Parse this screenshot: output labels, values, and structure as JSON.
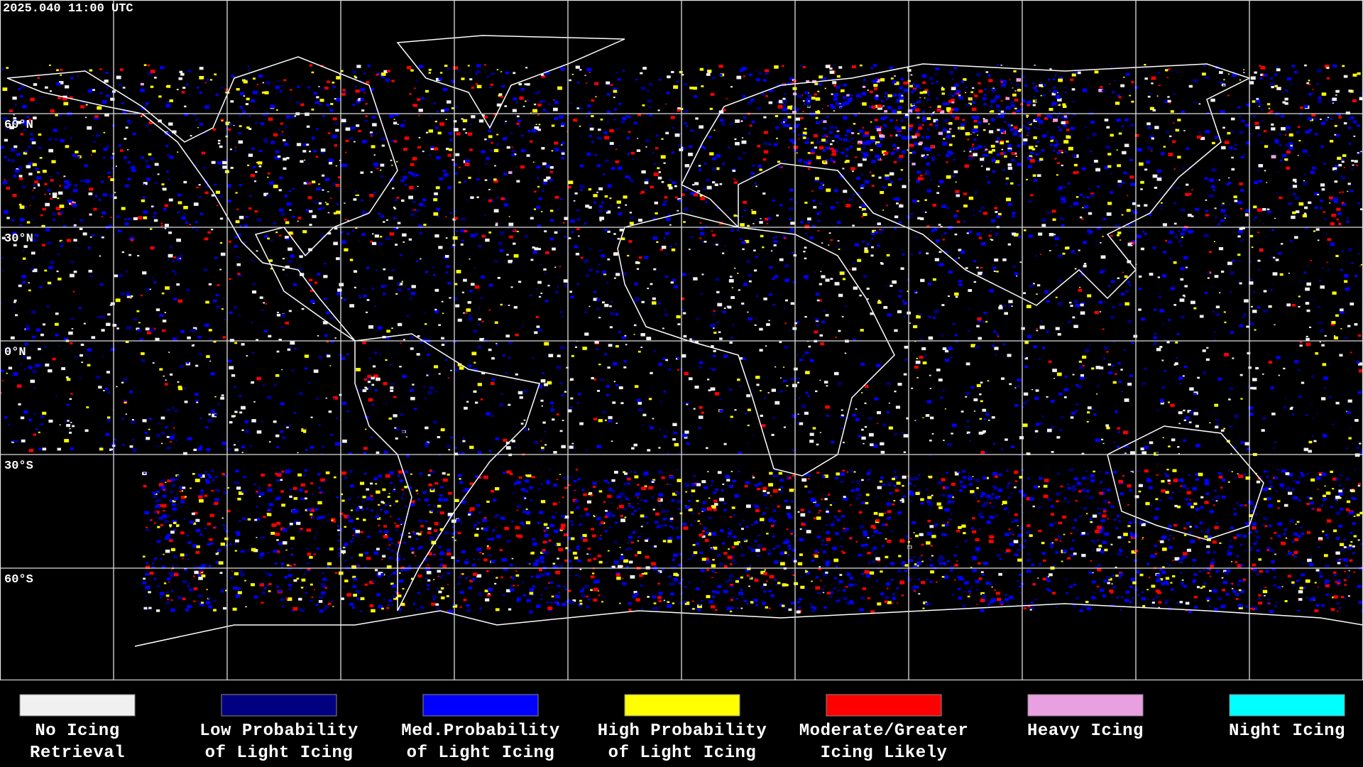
{
  "header": {
    "timestamp": "2025.040 11:00 UTC"
  },
  "map": {
    "latitude_labels": [
      "60°N",
      "30°N",
      "0°N",
      "30°S",
      "60°S"
    ]
  },
  "legend": {
    "items": [
      {
        "label": [
          "No Icing",
          "Retrieval"
        ],
        "color": "#f0f0f0"
      },
      {
        "label": [
          "Low Probability",
          "of Light Icing"
        ],
        "color": "#000080"
      },
      {
        "label": [
          "Med.Probability",
          "of Light Icing"
        ],
        "color": "#0000ff"
      },
      {
        "label": [
          "High Probability",
          "of Light Icing"
        ],
        "color": "#ffff00"
      },
      {
        "label": [
          "Moderate/Greater",
          "Icing Likely"
        ],
        "color": "#ff0000"
      },
      {
        "label": [
          "Heavy Icing"
        ],
        "color": "#e8a0e0"
      },
      {
        "label": [
          "Night Icing"
        ],
        "color": "#00ffff"
      }
    ]
  }
}
